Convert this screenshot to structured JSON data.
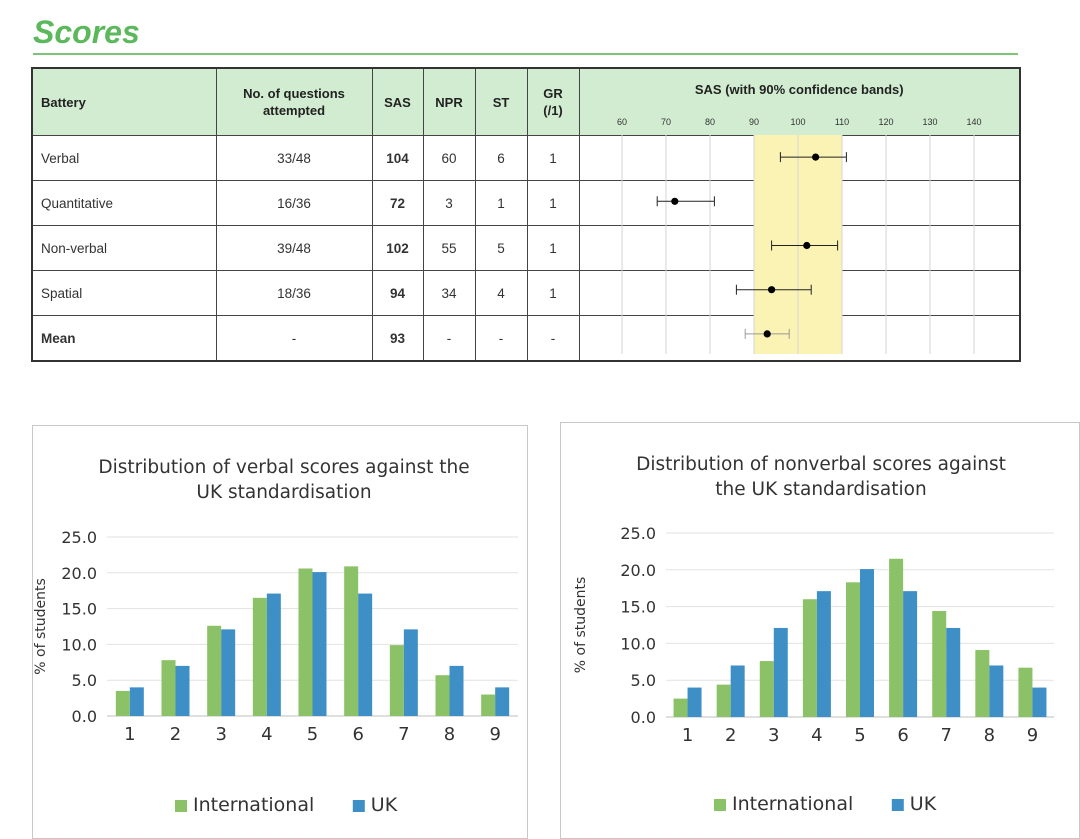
{
  "heading": "Scores",
  "colors": {
    "accent": "#5cb85c",
    "header_bg": "#d1ecd0",
    "band": "#fbf3b3",
    "international": "#8cc267",
    "uk": "#3f8fc7"
  },
  "table": {
    "headers": {
      "battery": "Battery",
      "questions_line1": "No. of questions",
      "questions_line2": "attempted",
      "sas": "SAS",
      "npr": "NPR",
      "st": "ST",
      "gr_line1": "GR",
      "gr_line2": "(/1)",
      "plot": "SAS (with 90% confidence bands)"
    },
    "axis_ticks": [
      "60",
      "70",
      "80",
      "90",
      "100",
      "110",
      "120",
      "130",
      "140"
    ],
    "axis_values": [
      60,
      70,
      80,
      90,
      100,
      110,
      120,
      130,
      140
    ],
    "band_range": [
      90,
      110
    ],
    "rows": [
      {
        "battery": "Verbal",
        "questions": "33/48",
        "sas": "104",
        "npr": "60",
        "st": "6",
        "gr": "1",
        "sas_value": 104,
        "ci": [
          96,
          111
        ]
      },
      {
        "battery": "Quantitative",
        "questions": "16/36",
        "sas": "72",
        "npr": "3",
        "st": "1",
        "gr": "1",
        "sas_value": 72,
        "ci": [
          68,
          81
        ]
      },
      {
        "battery": "Non-verbal",
        "questions": "39/48",
        "sas": "102",
        "npr": "55",
        "st": "5",
        "gr": "1",
        "sas_value": 102,
        "ci": [
          94,
          109
        ]
      },
      {
        "battery": "Spatial",
        "questions": "18/36",
        "sas": "94",
        "npr": "34",
        "st": "4",
        "gr": "1",
        "sas_value": 94,
        "ci": [
          86,
          103
        ]
      },
      {
        "battery": "Mean",
        "questions": "-",
        "sas": "93",
        "npr": "-",
        "st": "-",
        "gr": "-",
        "sas_value": 93,
        "ci": [
          88,
          98
        ]
      }
    ]
  },
  "chart_data": [
    {
      "type": "bar",
      "title": "Distribution of verbal scores against the UK standardisation",
      "title_lines": [
        "Distribution of verbal scores against the",
        "UK standardisation"
      ],
      "xlabel": "",
      "ylabel": "% of students",
      "ylim": [
        0,
        25
      ],
      "yticks": [
        "0.0",
        "5.0",
        "10.0",
        "15.0",
        "20.0",
        "25.0"
      ],
      "categories": [
        "1",
        "2",
        "3",
        "4",
        "5",
        "6",
        "7",
        "8",
        "9"
      ],
      "series": [
        {
          "name": "International",
          "values": [
            3.5,
            7.8,
            12.6,
            16.5,
            20.6,
            20.9,
            9.9,
            5.7,
            3.0
          ]
        },
        {
          "name": "UK",
          "values": [
            4.0,
            7.0,
            12.1,
            17.1,
            20.1,
            17.1,
            12.1,
            7.0,
            4.0
          ]
        }
      ],
      "legend": "bottom"
    },
    {
      "type": "bar",
      "title": "Distribution of nonverbal scores against the UK standardisation",
      "title_lines": [
        "Distribution of nonverbal scores against",
        "the UK standardisation"
      ],
      "xlabel": "",
      "ylabel": "% of students",
      "ylim": [
        0,
        25
      ],
      "yticks": [
        "0.0",
        "5.0",
        "10.0",
        "15.0",
        "20.0",
        "25.0"
      ],
      "categories": [
        "1",
        "2",
        "3",
        "4",
        "5",
        "6",
        "7",
        "8",
        "9"
      ],
      "series": [
        {
          "name": "International",
          "values": [
            2.5,
            4.4,
            7.6,
            16.0,
            18.3,
            21.5,
            14.4,
            9.1,
            6.7
          ]
        },
        {
          "name": "UK",
          "values": [
            4.0,
            7.0,
            12.1,
            17.1,
            20.1,
            17.1,
            12.1,
            7.0,
            4.0
          ]
        }
      ],
      "legend": "bottom"
    }
  ]
}
